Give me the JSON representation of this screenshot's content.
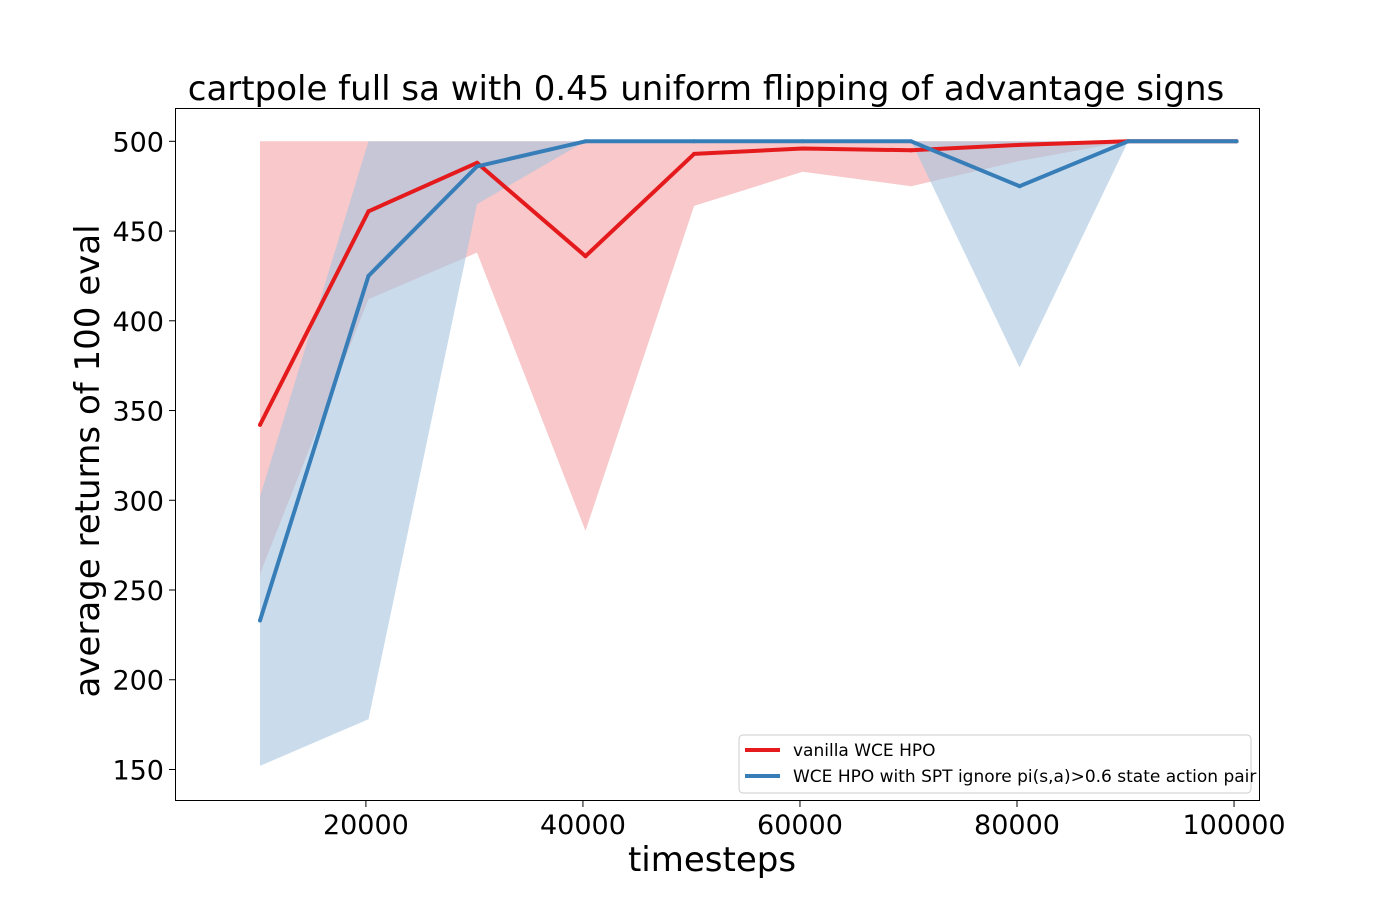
{
  "chart_data": {
    "type": "line",
    "title": "cartpole full sa with 0.45 uniform flipping of advantage signs",
    "xlabel": "timesteps",
    "ylabel": "average returns of 100 eval",
    "xlim": [
      2500,
      102300
    ],
    "ylim": [
      133,
      518
    ],
    "xticks": [
      20000,
      40000,
      60000,
      80000,
      100000
    ],
    "yticks": [
      150,
      200,
      250,
      300,
      350,
      400,
      450,
      500
    ],
    "x": [
      10240,
      20240,
      30240,
      40240,
      50240,
      60240,
      70240,
      80240,
      90240,
      100240
    ],
    "grid": false,
    "legend_position": "lower-right",
    "series": [
      {
        "name": "vanilla WCE HPO",
        "color": "#e41a1c",
        "fill_color": "#f4a3a6",
        "values": [
          342,
          461,
          488,
          436,
          493,
          496,
          495,
          498,
          500,
          500
        ],
        "lower": [
          259,
          412,
          438,
          283,
          464,
          483,
          475,
          489,
          500,
          500
        ],
        "upper": [
          500,
          500,
          500,
          500,
          500,
          500,
          500,
          500,
          500,
          500
        ]
      },
      {
        "name": "WCE HPO with SPT ignore pi(s,a)>0.6 state action pair",
        "color": "#377eb8",
        "fill_color": "#a6c4e0",
        "values": [
          233,
          425,
          486,
          500,
          500,
          500,
          500,
          475,
          500,
          500
        ],
        "lower": [
          152,
          178,
          465,
          500,
          500,
          500,
          500,
          374,
          500,
          500
        ],
        "upper": [
          302,
          500,
          500,
          500,
          500,
          500,
          500,
          500,
          500,
          500
        ]
      }
    ]
  }
}
